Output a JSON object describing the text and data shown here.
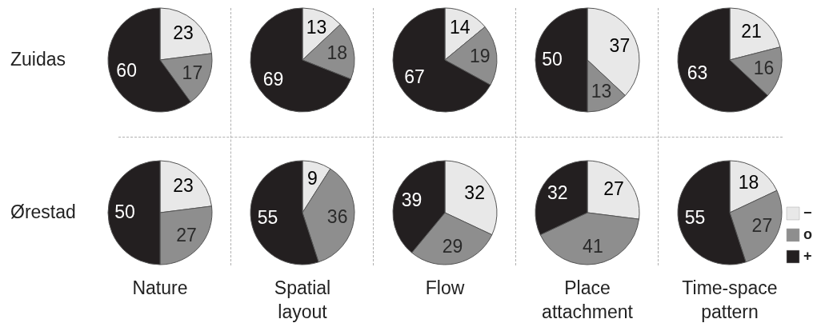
{
  "chart_data": [
    {
      "type": "pie",
      "ylabel": "Zuidas",
      "values": [
        23,
        17,
        60
      ],
      "colors": [
        "#e8e8e8",
        "#8e8e8e",
        "#231f20"
      ],
      "data_labels": true
    },
    {
      "type": "pie",
      "values": [
        13,
        18,
        69
      ],
      "colors": [
        "#e8e8e8",
        "#8e8e8e",
        "#231f20"
      ],
      "data_labels": true
    },
    {
      "type": "pie",
      "values": [
        14,
        19,
        67
      ],
      "colors": [
        "#e8e8e8",
        "#8e8e8e",
        "#231f20"
      ],
      "data_labels": true
    },
    {
      "type": "pie",
      "values": [
        37,
        13,
        50
      ],
      "colors": [
        "#e8e8e8",
        "#8e8e8e",
        "#231f20"
      ],
      "data_labels": true
    },
    {
      "type": "pie",
      "values": [
        21,
        16,
        63
      ],
      "colors": [
        "#e8e8e8",
        "#8e8e8e",
        "#231f20"
      ],
      "data_labels": true
    },
    {
      "type": "pie",
      "ylabel": "Ørestad",
      "xlabel": "Nature",
      "values": [
        23,
        27,
        50
      ],
      "colors": [
        "#e8e8e8",
        "#8e8e8e",
        "#231f20"
      ],
      "data_labels": true
    },
    {
      "type": "pie",
      "xlabel": "Spatial layout",
      "values": [
        9,
        36,
        55
      ],
      "colors": [
        "#e8e8e8",
        "#8e8e8e",
        "#231f20"
      ],
      "data_labels": true
    },
    {
      "type": "pie",
      "xlabel": "Flow",
      "values": [
        32,
        29,
        39
      ],
      "colors": [
        "#e8e8e8",
        "#8e8e8e",
        "#231f20"
      ],
      "data_labels": true
    },
    {
      "type": "pie",
      "xlabel": "Place attachment",
      "values": [
        27,
        41,
        32
      ],
      "colors": [
        "#e8e8e8",
        "#8e8e8e",
        "#231f20"
      ],
      "data_labels": true
    },
    {
      "type": "pie",
      "xlabel": "Time-space pattern",
      "legend": "right",
      "categories": [
        "−",
        "o",
        "+"
      ],
      "values": [
        18,
        27,
        55
      ],
      "colors": [
        "#e8e8e8",
        "#8e8e8e",
        "#231f20"
      ],
      "data_labels": true
    }
  ]
}
